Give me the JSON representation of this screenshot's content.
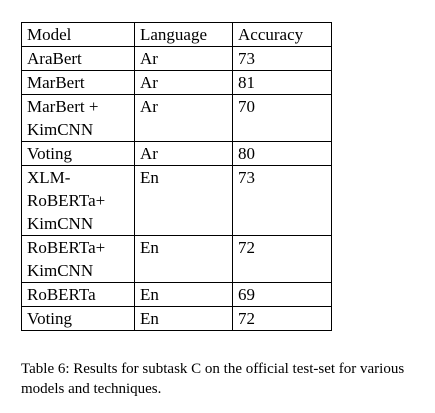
{
  "table": {
    "headers": [
      "Model",
      "Language",
      "Accuracy"
    ],
    "rows": [
      {
        "model": "AraBert",
        "language": "Ar",
        "accuracy": "73"
      },
      {
        "model": "MarBert",
        "language": "Ar",
        "accuracy": "81"
      },
      {
        "model": "MarBert + KimCNN",
        "language": "Ar",
        "accuracy": "70"
      },
      {
        "model": "Voting",
        "language": "Ar",
        "accuracy": "80"
      },
      {
        "model": "XLM-RoBERTa+ KimCNN",
        "language": "En",
        "accuracy": "73"
      },
      {
        "model": "RoBERTa+ KimCNN",
        "language": "En",
        "accuracy": "72"
      },
      {
        "model": "RoBERTa",
        "language": "En",
        "accuracy": "69"
      },
      {
        "model": "Voting",
        "language": "En",
        "accuracy": "72"
      }
    ]
  },
  "caption": "Table 6: Results for subtask C on the official test-set for various models and techniques."
}
